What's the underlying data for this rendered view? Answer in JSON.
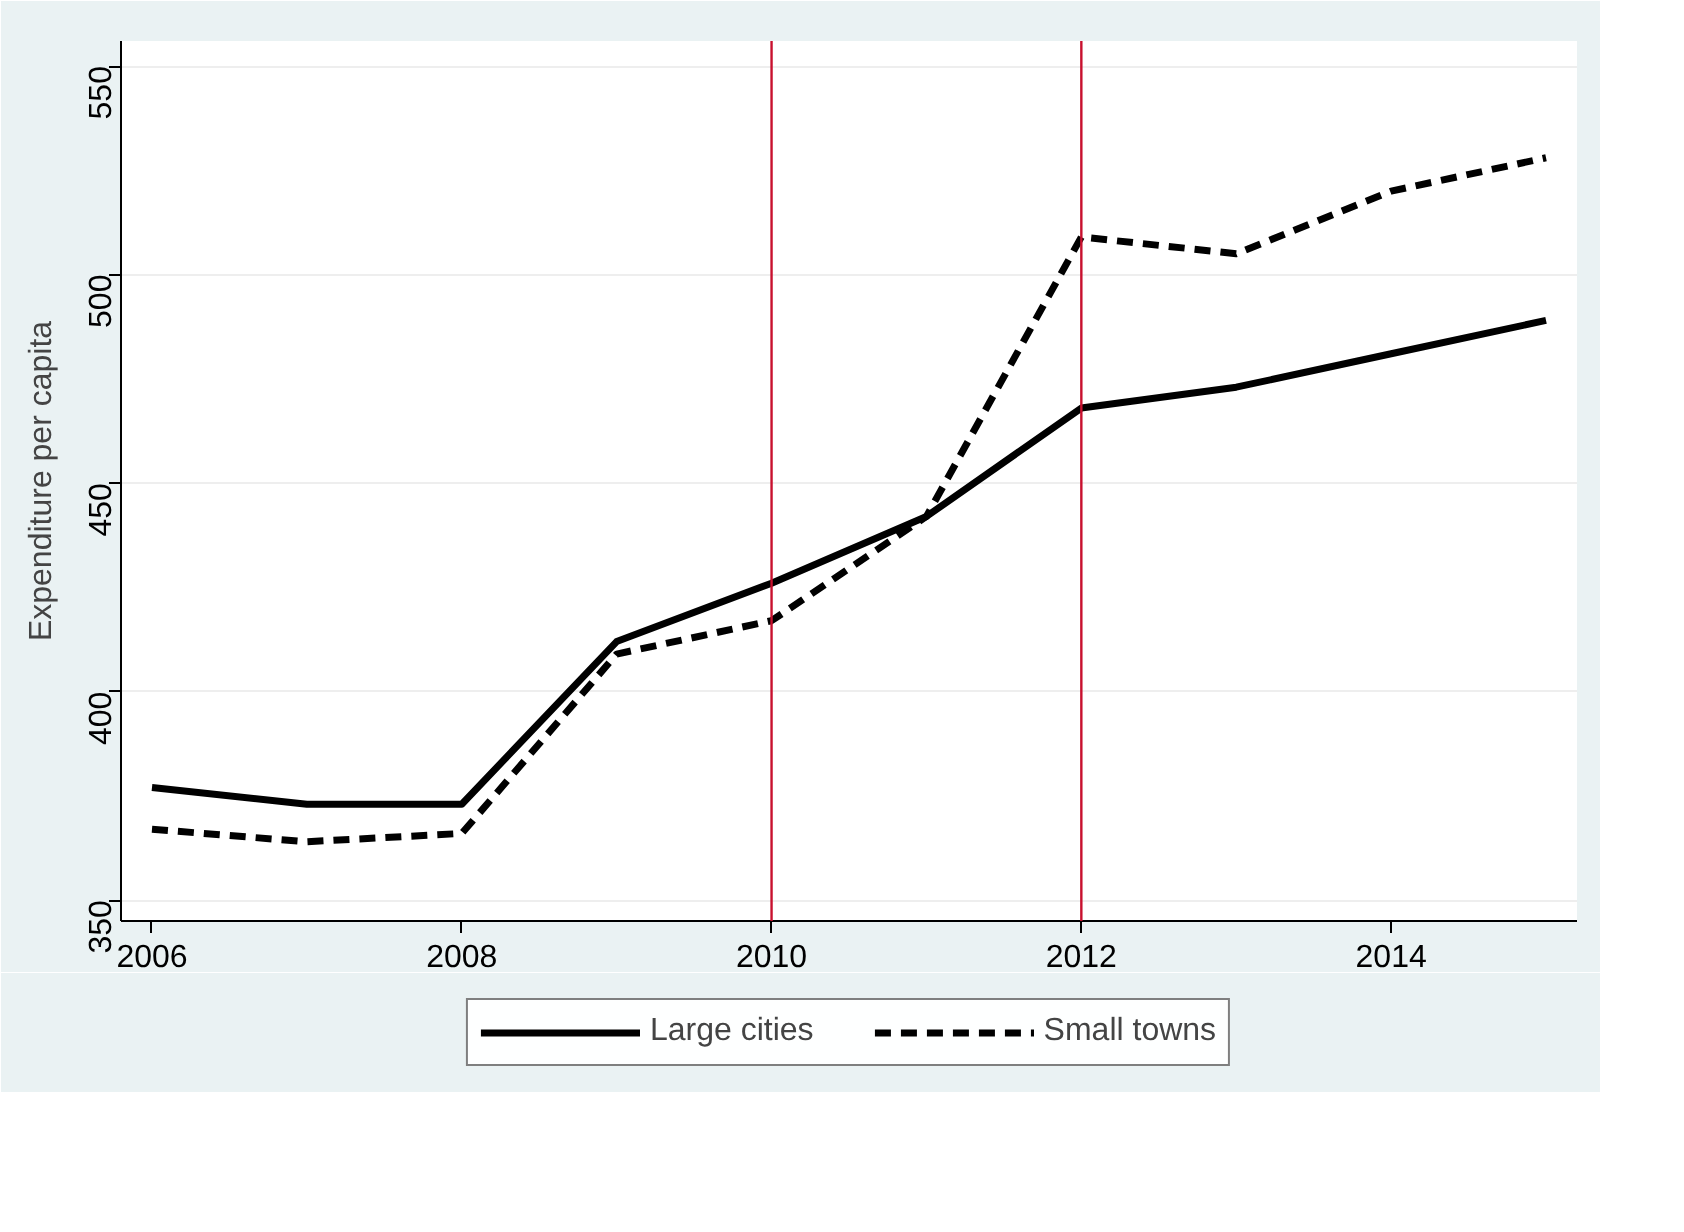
{
  "chart_data": {
    "type": "line",
    "ylabel": "Expenditure per capita",
    "x": [
      2006,
      2007,
      2008,
      2009,
      2010,
      2011,
      2012,
      2013,
      2014,
      2015
    ],
    "series": [
      {
        "name": "Large cities",
        "color": "#000000",
        "line_style": "solid",
        "values": [
          377,
          373,
          373,
          412,
          426,
          442,
          468,
          473,
          481,
          489
        ]
      },
      {
        "name": "Small towns",
        "color": "#000000",
        "line_style": "dashed",
        "values": [
          367,
          364,
          366,
          409,
          417,
          442,
          509,
          505,
          520,
          528
        ]
      }
    ],
    "xlim": [
      2005.8,
      2015.2
    ],
    "xticks": [
      2006,
      2008,
      2010,
      2012,
      2014
    ],
    "ylim": [
      345,
      556
    ],
    "yticks": [
      350,
      400,
      450,
      500,
      550
    ],
    "ref_lines": [
      {
        "axis": "x",
        "value": 2010,
        "color": "#c8102e"
      },
      {
        "axis": "x",
        "value": 2012,
        "color": "#c8102e"
      }
    ],
    "grid": "y",
    "legend": "bottom",
    "marker": "none"
  }
}
